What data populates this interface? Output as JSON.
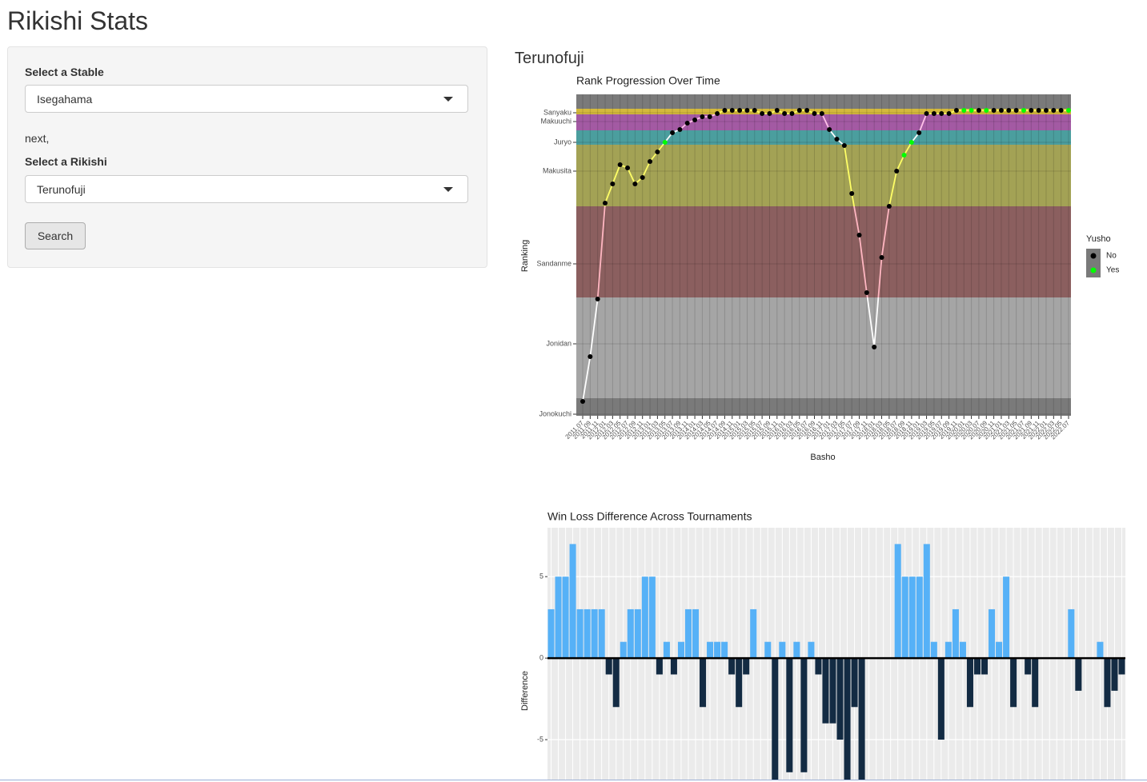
{
  "header": {
    "title": "Rikishi Stats"
  },
  "sidebar": {
    "stable_label": "Select a Stable",
    "stable_value": "Isegahama",
    "note": "next,",
    "rikishi_label": "Select a Rikishi",
    "rikishi_value": "Terunofuji",
    "button": "Search"
  },
  "main": {
    "heading": "Terunofuji"
  },
  "chart_data": [
    {
      "type": "line",
      "title": "Rank Progression Over Time",
      "x_label": "Basho",
      "y_label": "Ranking",
      "categories": [
        "2011.07",
        "2011.09",
        "2011.11",
        "2012.01",
        "2012.03",
        "2012.05",
        "2012.07",
        "2012.09",
        "2012.11",
        "2013.01",
        "2013.03",
        "2013.05",
        "2013.07",
        "2013.09",
        "2013.11",
        "2014.01",
        "2014.03",
        "2014.05",
        "2014.07",
        "2014.09",
        "2014.11",
        "2015.01",
        "2015.03",
        "2015.05",
        "2015.07",
        "2015.09",
        "2015.11",
        "2016.01",
        "2016.03",
        "2016.05",
        "2016.07",
        "2016.09",
        "2016.11",
        "2017.01",
        "2017.03",
        "2017.05",
        "2017.07",
        "2017.09",
        "2017.11",
        "2018.01",
        "2018.03",
        "2018.05",
        "2018.07",
        "2018.09",
        "2018.11",
        "2019.01",
        "2019.03",
        "2019.05",
        "2019.07",
        "2019.09",
        "2019.11",
        "2020.01",
        "2020.03",
        "2020.07",
        "2020.09",
        "2020.11",
        "2021.01",
        "2021.03",
        "2021.05",
        "2021.07",
        "2021.09",
        "2021.11",
        "2022.01",
        "2022.03",
        "2022.05",
        "2022.07"
      ],
      "values": [
        4,
        18,
        36,
        66,
        72,
        78,
        77,
        72,
        74,
        79,
        82,
        85,
        88,
        89,
        91,
        92,
        93,
        93,
        94,
        95,
        95,
        95,
        95,
        95,
        94,
        94,
        95,
        94,
        94,
        95,
        95,
        94,
        94,
        89,
        86,
        84,
        69,
        56,
        38,
        21,
        49,
        65,
        76,
        81,
        85,
        88,
        94,
        94,
        94,
        94,
        95,
        95,
        95,
        95,
        95,
        95,
        95,
        95,
        95,
        95,
        95,
        95,
        95,
        95,
        95,
        95
      ],
      "yusho": [
        "No",
        "No",
        "No",
        "No",
        "No",
        "No",
        "No",
        "No",
        "No",
        "No",
        "No",
        "Yes",
        "No",
        "No",
        "No",
        "No",
        "No",
        "No",
        "No",
        "No",
        "No",
        "No",
        "No",
        "No",
        "No",
        "No",
        "No",
        "No",
        "No",
        "No",
        "No",
        "No",
        "No",
        "No",
        "No",
        "No",
        "No",
        "No",
        "No",
        "No",
        "No",
        "No",
        "No",
        "Yes",
        "Yes",
        "No",
        "No",
        "No",
        "No",
        "No",
        "No",
        "Yes",
        "Yes",
        "No",
        "Yes",
        "No",
        "No",
        "No",
        "No",
        "Yes",
        "No",
        "No",
        "No",
        "No",
        "No",
        "Yes"
      ],
      "legend": {
        "title": "Yusho",
        "entries": [
          {
            "label": "No",
            "color": "#000000"
          },
          {
            "label": "Yes",
            "color": "#00ff00"
          }
        ]
      },
      "ylim": [
        0,
        100
      ],
      "yticks": [
        {
          "value": 0,
          "label": "Jonokuchi"
        },
        {
          "value": 22,
          "label": "Jonidan"
        },
        {
          "value": 47,
          "label": "Sandanme"
        },
        {
          "value": 76,
          "label": "Makusita"
        },
        {
          "value": 85,
          "label": "Juryo"
        },
        {
          "value": 91.5,
          "label": "Makuuchi"
        },
        {
          "value": 94.25,
          "label": "Sanyaku"
        }
      ],
      "bands": [
        {
          "from": 95.5,
          "to": 100,
          "color": "#7a7a7a",
          "line_color": "#ffff66"
        },
        {
          "from": 93.75,
          "to": 95.5,
          "color": "#d4b93c",
          "line_color": "#ffff66"
        },
        {
          "from": 88.75,
          "to": 93.75,
          "color": "#a35aa3",
          "line_color": "#ffc0e8"
        },
        {
          "from": 84.25,
          "to": 88.75,
          "color": "#4b9e9e",
          "line_color": "#ffffff"
        },
        {
          "from": 65,
          "to": 84.25,
          "color": "#a3a255",
          "line_color": "#ffff66"
        },
        {
          "from": 36.5,
          "to": 65,
          "color": "#8b5f5f",
          "line_color": "#ffb6c1"
        },
        {
          "from": 5,
          "to": 36.5,
          "color": "#a5a5a5",
          "line_color": "#ffffff"
        },
        {
          "from": 0,
          "to": 5,
          "color": "#7a7a7a",
          "line_color": "#ffffff"
        }
      ],
      "grid": true
    },
    {
      "type": "bar",
      "title": "Win Loss Difference Across Tournaments",
      "y_label": "Difference",
      "values": [
        3,
        5,
        5,
        7,
        3,
        3,
        3,
        3,
        -1,
        -3,
        1,
        3,
        3,
        5,
        5,
        -1,
        1,
        -1,
        1,
        3,
        3,
        -3,
        1,
        1,
        1,
        -1,
        -3,
        -1,
        3,
        0,
        1,
        -8,
        1,
        -7,
        1,
        -7,
        1,
        -1,
        -4,
        -4,
        -5,
        -8,
        -3,
        -8,
        0,
        0,
        0,
        0,
        7,
        5,
        5,
        5,
        7,
        1,
        -5,
        1,
        3,
        1,
        -3,
        -1,
        -1,
        3,
        1,
        5,
        -3,
        0,
        -1,
        -3,
        0,
        0,
        0,
        0,
        3,
        -2,
        0,
        0,
        1,
        -3,
        -2,
        -1
      ],
      "colors": {
        "positive": "#56b1f7",
        "negative": "#132b43"
      },
      "ylim": [
        -7.5,
        8
      ],
      "yticks": [
        -5,
        0,
        5
      ],
      "grid": true
    }
  ]
}
